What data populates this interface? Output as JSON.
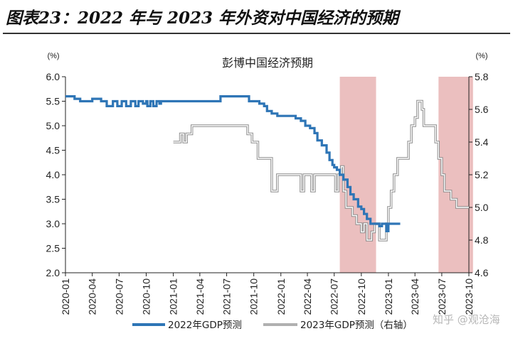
{
  "page_title": "图表23：2022 年与 2023 年外资对中国经济的预期",
  "watermark": "知乎 @观沧海",
  "chart_data": {
    "type": "line",
    "title": "彭博中国经济预期",
    "left_unit": "(%)",
    "right_unit": "(%)",
    "x_ticks": [
      "2020-01",
      "2020-04",
      "2020-07",
      "2020-10",
      "2021-01",
      "2021-04",
      "2021-07",
      "2021-10",
      "2022-01",
      "2022-04",
      "2022-07",
      "2022-10",
      "2023-01",
      "2023-04",
      "2023-07",
      "2023-10"
    ],
    "x_range": [
      "2020-01",
      "2023-10"
    ],
    "y_left": {
      "min": 2.0,
      "max": 6.0,
      "ticks": [
        "2.0",
        "2.5",
        "3.0",
        "3.5",
        "4.0",
        "4.5",
        "5.0",
        "5.5",
        "6.0"
      ]
    },
    "y_right": {
      "min": 4.6,
      "max": 5.8,
      "ticks": [
        "4.6",
        "4.8",
        "5.0",
        "5.2",
        "5.4",
        "5.6",
        "5.8"
      ]
    },
    "grid": false,
    "legend_position": "bottom",
    "shaded_periods": [
      {
        "start": "2022-07-20",
        "end": "2022-11-20",
        "color": "#e8b4b4"
      },
      {
        "start": "2023-06-20",
        "end": "2023-10-15",
        "color": "#e8b4b4"
      }
    ],
    "series": [
      {
        "name": "2022年GDP预测",
        "axis": "left",
        "color": "#2e75b6",
        "points": [
          [
            "2020-01-01",
            5.6
          ],
          [
            "2020-01-25",
            5.6
          ],
          [
            "2020-02-01",
            5.55
          ],
          [
            "2020-02-20",
            5.5
          ],
          [
            "2020-03-20",
            5.5
          ],
          [
            "2020-04-01",
            5.55
          ],
          [
            "2020-05-01",
            5.5
          ],
          [
            "2020-05-20",
            5.4
          ],
          [
            "2020-06-10",
            5.5
          ],
          [
            "2020-06-25",
            5.4
          ],
          [
            "2020-07-10",
            5.5
          ],
          [
            "2020-07-25",
            5.4
          ],
          [
            "2020-08-10",
            5.5
          ],
          [
            "2020-08-25",
            5.4
          ],
          [
            "2020-09-05",
            5.5
          ],
          [
            "2020-09-20",
            5.45
          ],
          [
            "2020-10-01",
            5.5
          ],
          [
            "2020-10-05",
            5.4
          ],
          [
            "2020-10-15",
            5.5
          ],
          [
            "2020-10-25",
            5.4
          ],
          [
            "2020-11-05",
            5.5
          ],
          [
            "2020-11-15",
            5.45
          ],
          [
            "2020-11-20",
            5.5
          ],
          [
            "2021-01-01",
            5.5
          ],
          [
            "2021-03-01",
            5.5
          ],
          [
            "2021-06-01",
            5.5
          ],
          [
            "2021-06-10",
            5.6
          ],
          [
            "2021-07-01",
            5.6
          ],
          [
            "2021-08-01",
            5.6
          ],
          [
            "2021-09-10",
            5.6
          ],
          [
            "2021-09-15",
            5.5
          ],
          [
            "2021-10-01",
            5.5
          ],
          [
            "2021-10-20",
            5.45
          ],
          [
            "2021-11-05",
            5.4
          ],
          [
            "2021-11-15",
            5.3
          ],
          [
            "2021-12-01",
            5.25
          ],
          [
            "2021-12-20",
            5.2
          ],
          [
            "2022-01-01",
            5.2
          ],
          [
            "2022-02-01",
            5.2
          ],
          [
            "2022-02-20",
            5.15
          ],
          [
            "2022-03-10",
            5.1
          ],
          [
            "2022-03-25",
            5.0
          ],
          [
            "2022-04-10",
            4.95
          ],
          [
            "2022-04-25",
            4.85
          ],
          [
            "2022-05-05",
            4.7
          ],
          [
            "2022-05-20",
            4.6
          ],
          [
            "2022-06-05",
            4.45
          ],
          [
            "2022-06-15",
            4.3
          ],
          [
            "2022-06-25",
            4.2
          ],
          [
            "2022-07-01",
            4.15
          ],
          [
            "2022-07-10",
            4.1
          ],
          [
            "2022-07-20",
            4.0
          ],
          [
            "2022-08-01",
            3.9
          ],
          [
            "2022-08-15",
            3.75
          ],
          [
            "2022-08-25",
            3.6
          ],
          [
            "2022-09-05",
            3.5
          ],
          [
            "2022-09-20",
            3.35
          ],
          [
            "2022-10-01",
            3.3
          ],
          [
            "2022-10-10",
            3.2
          ],
          [
            "2022-10-20",
            3.1
          ],
          [
            "2022-11-01",
            3.0
          ],
          [
            "2022-11-20",
            3.0
          ],
          [
            "2022-12-01",
            2.95
          ],
          [
            "2022-12-10",
            3.0
          ],
          [
            "2022-12-20",
            3.0
          ],
          [
            "2022-12-25",
            2.85
          ],
          [
            "2023-01-01",
            3.0
          ],
          [
            "2023-02-10",
            3.0
          ]
        ]
      },
      {
        "name": "2023年GDP预测（右轴）",
        "axis": "right",
        "color": "#b0b0b0",
        "points": [
          [
            "2021-01-01",
            5.4
          ],
          [
            "2021-01-20",
            5.4
          ],
          [
            "2021-01-25",
            5.45
          ],
          [
            "2021-02-05",
            5.4
          ],
          [
            "2021-02-15",
            5.45
          ],
          [
            "2021-03-01",
            5.45
          ],
          [
            "2021-03-05",
            5.5
          ],
          [
            "2021-05-01",
            5.5
          ],
          [
            "2021-06-01",
            5.5
          ],
          [
            "2021-08-01",
            5.5
          ],
          [
            "2021-09-05",
            5.5
          ],
          [
            "2021-09-10",
            5.45
          ],
          [
            "2021-09-25",
            5.4
          ],
          [
            "2021-10-05",
            5.4
          ],
          [
            "2021-10-15",
            5.3
          ],
          [
            "2021-11-01",
            5.3
          ],
          [
            "2021-11-15",
            5.3
          ],
          [
            "2021-12-01",
            5.1
          ],
          [
            "2021-12-15",
            5.1
          ],
          [
            "2021-12-20",
            5.2
          ],
          [
            "2022-01-01",
            5.2
          ],
          [
            "2022-03-01",
            5.2
          ],
          [
            "2022-03-10",
            5.1
          ],
          [
            "2022-03-20",
            5.2
          ],
          [
            "2022-04-10",
            5.2
          ],
          [
            "2022-04-15",
            5.1
          ],
          [
            "2022-04-25",
            5.2
          ],
          [
            "2022-06-01",
            5.2
          ],
          [
            "2022-07-01",
            5.2
          ],
          [
            "2022-07-05",
            5.1
          ],
          [
            "2022-07-15",
            5.2
          ],
          [
            "2022-07-25",
            5.25
          ],
          [
            "2022-08-01",
            5.1
          ],
          [
            "2022-08-10",
            5.0
          ],
          [
            "2022-08-20",
            5.0
          ],
          [
            "2022-09-01",
            4.95
          ],
          [
            "2022-09-15",
            4.9
          ],
          [
            "2022-10-01",
            4.85
          ],
          [
            "2022-10-10",
            4.9
          ],
          [
            "2022-10-20",
            4.8
          ],
          [
            "2022-10-30",
            4.8
          ],
          [
            "2022-11-05",
            4.85
          ],
          [
            "2022-11-15",
            4.9
          ],
          [
            "2022-11-25",
            4.9
          ],
          [
            "2022-12-01",
            4.8
          ],
          [
            "2022-12-20",
            4.8
          ],
          [
            "2022-12-25",
            4.9
          ],
          [
            "2023-01-01",
            5.0
          ],
          [
            "2023-01-10",
            5.1
          ],
          [
            "2023-01-20",
            5.2
          ],
          [
            "2023-02-01",
            5.3
          ],
          [
            "2023-03-01",
            5.3
          ],
          [
            "2023-03-10",
            5.4
          ],
          [
            "2023-03-20",
            5.5
          ],
          [
            "2023-04-01",
            5.55
          ],
          [
            "2023-04-10",
            5.65
          ],
          [
            "2023-04-20",
            5.65
          ],
          [
            "2023-04-25",
            5.6
          ],
          [
            "2023-05-01",
            5.5
          ],
          [
            "2023-05-10",
            5.5
          ],
          [
            "2023-06-01",
            5.5
          ],
          [
            "2023-06-10",
            5.4
          ],
          [
            "2023-06-20",
            5.3
          ],
          [
            "2023-07-01",
            5.2
          ],
          [
            "2023-07-10",
            5.1
          ],
          [
            "2023-07-20",
            5.1
          ],
          [
            "2023-08-01",
            5.05
          ],
          [
            "2023-08-20",
            5.0
          ],
          [
            "2023-09-01",
            5.0
          ],
          [
            "2023-09-20",
            5.0
          ],
          [
            "2023-10-01",
            5.0
          ]
        ]
      }
    ]
  }
}
